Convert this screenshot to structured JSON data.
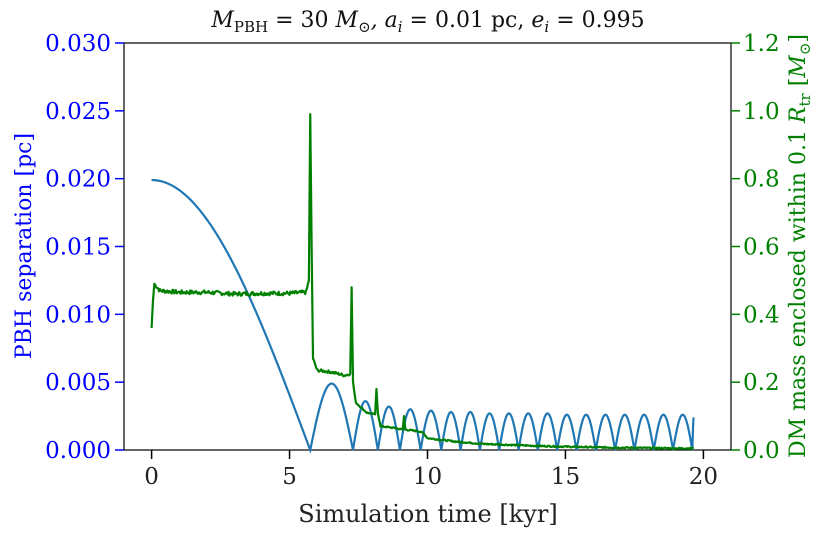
{
  "chart_data": {
    "type": "line",
    "title": "M_PBH = 30 M_⊙, a_i = 0.01 pc, e_i = 0.995",
    "title_parts": {
      "m_symbol": "M",
      "m_sub": "PBH",
      "m_value": " = 30 ",
      "msun_symbol": "M",
      "msun_sub": "⊙",
      "a_symbol": ", a",
      "a_sub": "i",
      "a_value": " = 0.01 pc, ",
      "e_symbol": "e",
      "e_sub": "i",
      "e_value": " = 0.995"
    },
    "xlabel": "Simulation time [kyr]",
    "ylabel_left": "PBH separation [pc]",
    "ylabel_right_parts": {
      "prefix": "DM mass enclosed within 0.1 ",
      "r_symbol": "R",
      "r_sub": "tr",
      "bracket_open": " [",
      "m_symbol": "M",
      "m_sub": "⊙",
      "bracket_close": "]"
    },
    "xlim": [
      -1,
      21
    ],
    "ylim_left": [
      0,
      0.03
    ],
    "ylim_right": [
      0,
      1.2
    ],
    "x_ticks": [
      "0",
      "5",
      "10",
      "15",
      "20"
    ],
    "x_tick_values": [
      0,
      5,
      10,
      15,
      20
    ],
    "left_ticks": [
      "0.000",
      "0.005",
      "0.010",
      "0.015",
      "0.020",
      "0.025",
      "0.030"
    ],
    "left_tick_values": [
      0,
      0.005,
      0.01,
      0.015,
      0.02,
      0.025,
      0.03
    ],
    "right_ticks": [
      "0.0",
      "0.2",
      "0.4",
      "0.6",
      "0.8",
      "1.0",
      "1.2"
    ],
    "right_tick_values": [
      0,
      0.2,
      0.4,
      0.6,
      0.8,
      1.0,
      1.2
    ],
    "series": [
      {
        "name": "PBH separation",
        "axis": "left",
        "color": "#1f77b4",
        "first_orbit": {
          "start": 0,
          "end": 5.75,
          "peak": 0.0199
        },
        "orbits": [
          {
            "start": 5.75,
            "end": 7.3,
            "peak": 0.0049
          },
          {
            "start": 7.3,
            "end": 8.2,
            "peak": 0.0036
          },
          {
            "start": 8.2,
            "end": 9.0,
            "peak": 0.0032
          },
          {
            "start": 9.0,
            "end": 9.75,
            "peak": 0.003
          },
          {
            "start": 9.75,
            "end": 10.5,
            "peak": 0.0029
          },
          {
            "start": 10.5,
            "end": 11.2,
            "peak": 0.0028
          },
          {
            "start": 11.2,
            "end": 11.9,
            "peak": 0.0028
          },
          {
            "start": 11.9,
            "end": 12.6,
            "peak": 0.0027
          },
          {
            "start": 12.6,
            "end": 13.3,
            "peak": 0.0027
          },
          {
            "start": 13.3,
            "end": 14.0,
            "peak": 0.0027
          },
          {
            "start": 14.0,
            "end": 14.7,
            "peak": 0.0027
          },
          {
            "start": 14.7,
            "end": 15.4,
            "peak": 0.0026
          },
          {
            "start": 15.4,
            "end": 16.1,
            "peak": 0.0026
          },
          {
            "start": 16.1,
            "end": 16.8,
            "peak": 0.0026
          },
          {
            "start": 16.8,
            "end": 17.5,
            "peak": 0.0026
          },
          {
            "start": 17.5,
            "end": 18.2,
            "peak": 0.0026
          },
          {
            "start": 18.2,
            "end": 18.9,
            "peak": 0.0026
          },
          {
            "start": 18.9,
            "end": 19.6,
            "peak": 0.0026
          }
        ],
        "final_point": {
          "x": 19.65,
          "y": 0.0024
        }
      },
      {
        "name": "DM mass enclosed",
        "axis": "right",
        "color": "#008000",
        "points": [
          [
            0,
            0.36
          ],
          [
            0.05,
            0.44
          ],
          [
            0.1,
            0.49
          ],
          [
            0.3,
            0.47
          ],
          [
            1.0,
            0.465
          ],
          [
            2.0,
            0.465
          ],
          [
            3.0,
            0.46
          ],
          [
            4.0,
            0.462
          ],
          [
            5.0,
            0.462
          ],
          [
            5.6,
            0.465
          ],
          [
            5.7,
            0.5
          ],
          [
            5.75,
            0.99
          ],
          [
            5.8,
            0.6
          ],
          [
            5.85,
            0.27
          ],
          [
            6.0,
            0.235
          ],
          [
            6.5,
            0.23
          ],
          [
            7.0,
            0.22
          ],
          [
            7.2,
            0.225
          ],
          [
            7.25,
            0.48
          ],
          [
            7.3,
            0.2
          ],
          [
            7.4,
            0.14
          ],
          [
            7.8,
            0.11
          ],
          [
            8.1,
            0.105
          ],
          [
            8.15,
            0.18
          ],
          [
            8.2,
            0.11
          ],
          [
            8.3,
            0.07
          ],
          [
            8.8,
            0.065
          ],
          [
            9.1,
            0.06
          ],
          [
            9.15,
            0.1
          ],
          [
            9.2,
            0.06
          ],
          [
            9.7,
            0.055
          ],
          [
            9.85,
            0.05
          ],
          [
            10.0,
            0.035
          ],
          [
            11.0,
            0.025
          ],
          [
            12.0,
            0.018
          ],
          [
            13.0,
            0.015
          ],
          [
            14.0,
            0.012
          ],
          [
            15.0,
            0.01
          ],
          [
            16.0,
            0.008
          ],
          [
            17.0,
            0.007
          ],
          [
            18.0,
            0.006
          ],
          [
            19.0,
            0.005
          ],
          [
            19.65,
            0.005
          ]
        ]
      }
    ]
  }
}
